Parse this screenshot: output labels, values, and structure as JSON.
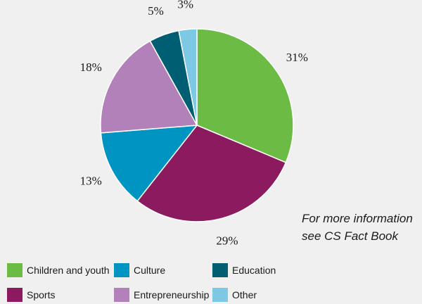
{
  "chart_data": {
    "type": "pie",
    "title": "",
    "slices": [
      {
        "label": "Children and youth",
        "value": 31,
        "value_label": "31%",
        "color": "#6bbb45"
      },
      {
        "label": "Sports",
        "value": 29,
        "value_label": "29%",
        "color": "#8b1a5e"
      },
      {
        "label": "Culture",
        "value": 13,
        "value_label": "13%",
        "color": "#0094c3"
      },
      {
        "label": "Entrepreneurship",
        "value": 18,
        "value_label": "18%",
        "color": "#b381b9"
      },
      {
        "label": "Education",
        "value": 5,
        "value_label": "5%",
        "color": "#005e73"
      },
      {
        "label": "Other",
        "value": 3,
        "value_label": "3%",
        "color": "#7dc8e3"
      }
    ],
    "legend_position": "bottom"
  },
  "note": {
    "line1": "For more information",
    "line2": "see CS Fact Book"
  },
  "legend": {
    "children_and_youth": "Children and youth",
    "culture": "Culture",
    "education": "Education",
    "sports": "Sports",
    "entrepreneurship": "Entrepreneurship",
    "other": "Other"
  },
  "colors": {
    "children_and_youth": "#6bbb45",
    "culture": "#0094c3",
    "education": "#005e73",
    "sports": "#8b1a5e",
    "entrepreneurship": "#b381b9",
    "other": "#7dc8e3"
  }
}
